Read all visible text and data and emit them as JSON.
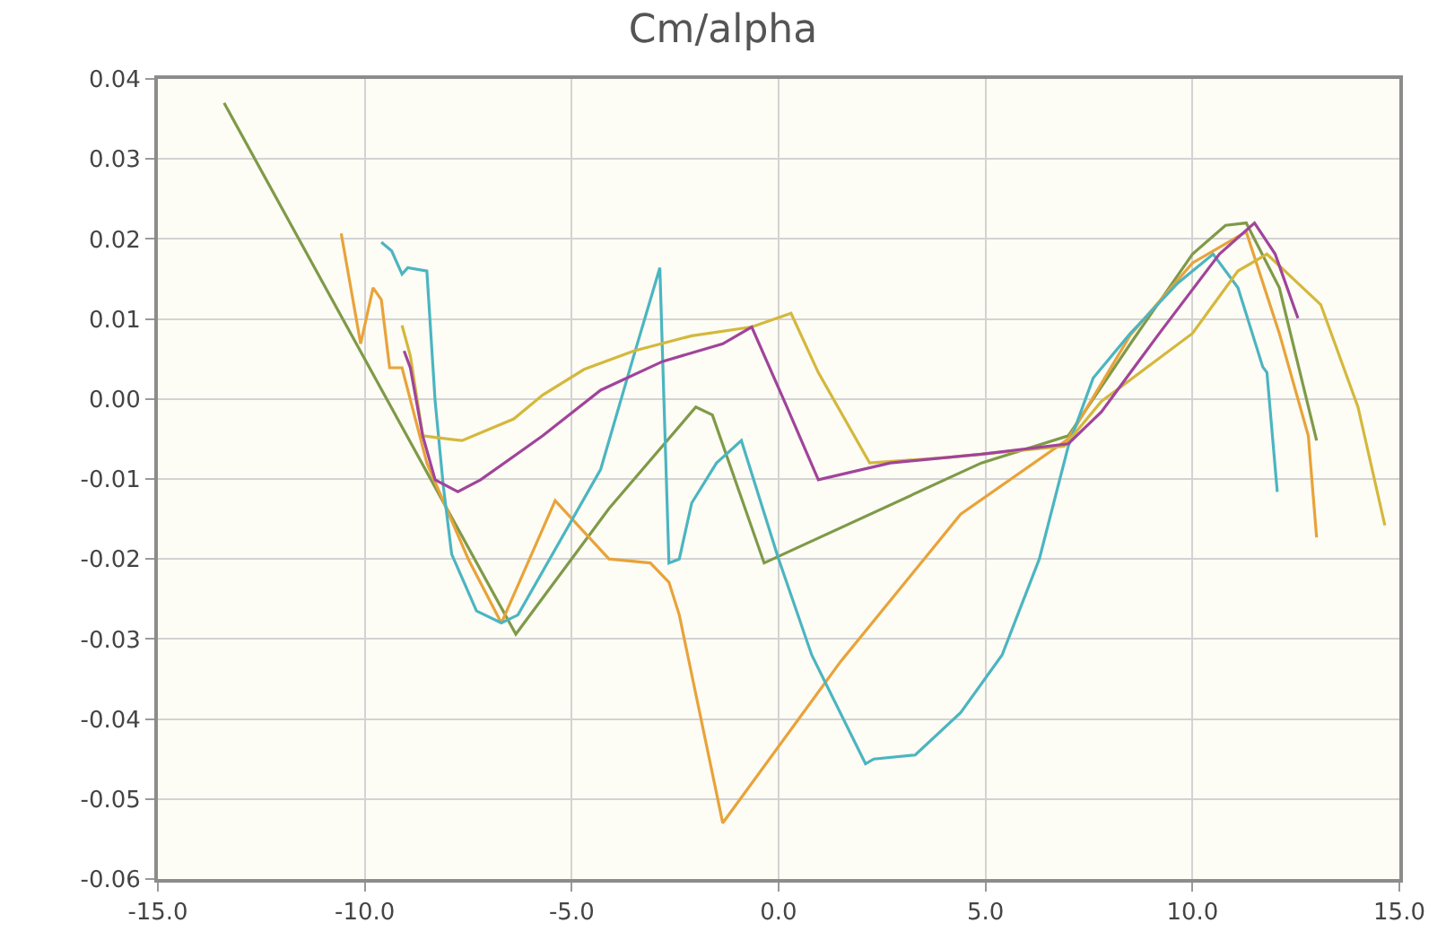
{
  "chart_data": {
    "type": "line",
    "title": "Cm/alpha",
    "xlim": [
      -15,
      15
    ],
    "xticks": [
      {
        "value": -15,
        "label": "-15.0"
      },
      {
        "value": -10,
        "label": "-10.0"
      },
      {
        "value": -5,
        "label": "-5.0"
      },
      {
        "value": 0,
        "label": "0.0"
      },
      {
        "value": 5,
        "label": "5.0"
      },
      {
        "value": 10,
        "label": "10.0"
      },
      {
        "value": 15,
        "label": "15.0"
      }
    ],
    "ylim": [
      -0.06,
      0.04
    ],
    "yticks": [
      {
        "value": -0.06,
        "label": "-0.06"
      },
      {
        "value": -0.05,
        "label": "-0.05"
      },
      {
        "value": -0.04,
        "label": "-0.04"
      },
      {
        "value": -0.03,
        "label": "-0.03"
      },
      {
        "value": -0.02,
        "label": "-0.02"
      },
      {
        "value": -0.01,
        "label": "-0.01"
      },
      {
        "value": 0,
        "label": "0.00"
      },
      {
        "value": 0.01,
        "label": "0.01"
      },
      {
        "value": 0.02,
        "label": "0.02"
      },
      {
        "value": 0.03,
        "label": "0.03"
      },
      {
        "value": 0.04,
        "label": "0.04"
      }
    ],
    "grid": true,
    "marker": "none",
    "line_style": "solid",
    "series": [
      {
        "color": "#7f9a48",
        "x": [
          -13.4,
          -6.35,
          -4.1,
          -2.0,
          -1.6,
          -0.35,
          4.9,
          7.0,
          8.5,
          10.0,
          10.8,
          11.3,
          12.1,
          13.0
        ],
        "values": [
          0.037,
          -0.0294,
          -0.0137,
          -0.001,
          -0.002,
          -0.0205,
          -0.008,
          -0.0046,
          0.0069,
          0.0181,
          0.0217,
          0.022,
          0.0139,
          -0.0052
        ]
      },
      {
        "color": "#e8a33a",
        "x": [
          -10.57,
          -10.1,
          -9.8,
          -9.6,
          -9.4,
          -9.1,
          -8.5,
          -7.5,
          -6.7,
          -5.4,
          -4.1,
          -3.1,
          -2.65,
          -2.4,
          -1.35,
          1.5,
          4.4,
          7.0,
          8.5,
          10.0,
          11.3,
          12.1,
          12.8,
          13.0
        ],
        "values": [
          0.0207,
          0.0069,
          0.0139,
          0.0124,
          0.0039,
          0.0039,
          -0.008,
          -0.02,
          -0.028,
          -0.0127,
          -0.02,
          -0.0205,
          -0.0229,
          -0.027,
          -0.053,
          -0.0328,
          -0.0144,
          -0.005,
          0.008,
          0.017,
          0.0209,
          0.0082,
          -0.0046,
          -0.0173
        ]
      },
      {
        "color": "#4bb5c1",
        "x": [
          -9.6,
          -9.35,
          -9.1,
          -8.96,
          -8.5,
          -8.3,
          -8.1,
          -7.9,
          -7.3,
          -6.7,
          -6.3,
          -4.3,
          -3.5,
          -2.87,
          -2.65,
          -2.4,
          -2.1,
          -1.5,
          -0.9,
          0.0,
          0.8,
          2.1,
          2.3,
          3.3,
          4.4,
          5.4,
          6.3,
          7.0,
          7.6,
          8.5,
          9.65,
          10.5,
          11.1,
          11.7,
          11.8,
          12.05
        ],
        "values": [
          0.0196,
          0.0185,
          0.0156,
          0.0164,
          0.016,
          -0.0003,
          -0.011,
          -0.0194,
          -0.0265,
          -0.028,
          -0.027,
          -0.0088,
          0.0054,
          0.0164,
          -0.0205,
          -0.02,
          -0.013,
          -0.008,
          -0.0052,
          -0.02,
          -0.032,
          -0.0456,
          -0.045,
          -0.0445,
          -0.0392,
          -0.032,
          -0.02,
          -0.0059,
          0.0026,
          0.0082,
          0.0145,
          0.0181,
          0.0139,
          0.004,
          0.0033,
          -0.0116
        ]
      },
      {
        "color": "#d4b83c",
        "x": [
          -9.1,
          -8.9,
          -8.6,
          -8.3,
          -7.65,
          -6.4,
          -5.7,
          -4.7,
          -3.5,
          -2.1,
          -0.65,
          0.3,
          0.96,
          2.2,
          4.1,
          6.9,
          7.8,
          10.0,
          11.1,
          11.8,
          13.1,
          14.0,
          14.65
        ],
        "values": [
          0.0092,
          0.0054,
          -0.0046,
          -0.0048,
          -0.0052,
          -0.0025,
          0.0005,
          0.0037,
          0.006,
          0.0079,
          0.009,
          0.0107,
          0.0033,
          -0.008,
          -0.0073,
          -0.0059,
          -0.0003,
          0.0082,
          0.016,
          0.0181,
          0.0118,
          -0.001,
          -0.0158
        ]
      },
      {
        "color": "#a0449a",
        "x": [
          -9.05,
          -8.9,
          -8.6,
          -8.3,
          -7.75,
          -7.2,
          -5.7,
          -4.3,
          -2.8,
          -1.35,
          -0.65,
          0.2,
          0.96,
          2.7,
          4.9,
          7.0,
          7.8,
          9.2,
          10.65,
          11.5,
          12.0,
          12.55
        ],
        "values": [
          0.006,
          0.0039,
          -0.0046,
          -0.0101,
          -0.0116,
          -0.0101,
          -0.0046,
          0.0011,
          0.0047,
          0.0069,
          0.009,
          -0.001,
          -0.0101,
          -0.008,
          -0.0069,
          -0.0056,
          -0.0016,
          0.0082,
          0.0181,
          0.022,
          0.0181,
          0.0101
        ]
      }
    ]
  }
}
